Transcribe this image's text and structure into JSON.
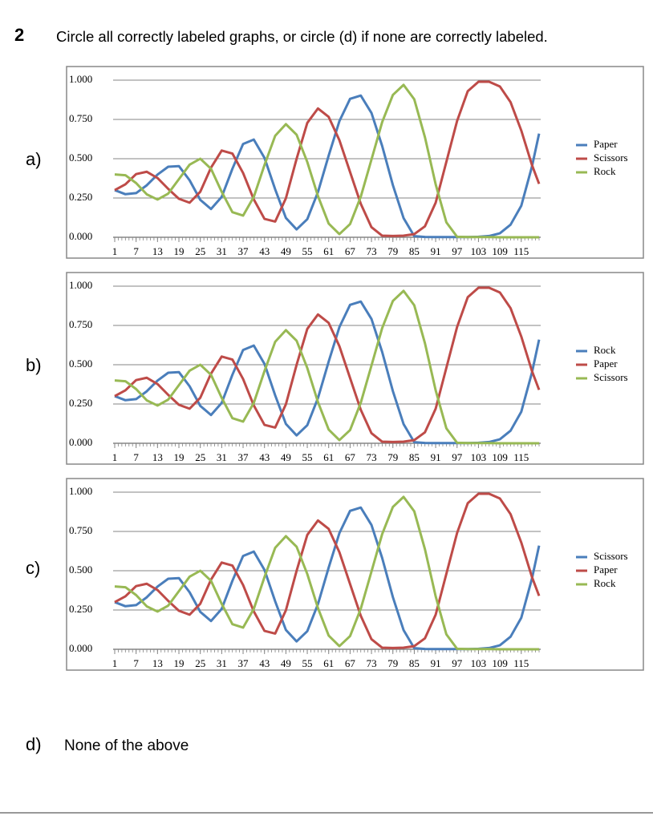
{
  "question": {
    "number": "2",
    "prompt": "Circle all correctly labeled graphs, or circle (d) if none are correctly labeled."
  },
  "option_labels": [
    "a)",
    "b)",
    "c)",
    "d)"
  ],
  "none_option": "None of the above",
  "chart_data": [
    {
      "type": "line",
      "legend": "right",
      "grid": true,
      "x": [
        1,
        4,
        7,
        10,
        13,
        16,
        19,
        22,
        25,
        28,
        31,
        34,
        37,
        40,
        43,
        46,
        49,
        52,
        55,
        58,
        61,
        64,
        67,
        70,
        73,
        76,
        79,
        82,
        85,
        88,
        91,
        94,
        97,
        100,
        103,
        106,
        109,
        112,
        115,
        118,
        120
      ],
      "xlim": [
        1,
        120
      ],
      "xticks": [
        1,
        7,
        13,
        19,
        25,
        31,
        37,
        43,
        49,
        55,
        61,
        67,
        73,
        79,
        85,
        91,
        97,
        103,
        109,
        115
      ],
      "ylim": [
        0,
        1
      ],
      "yticks": [
        {
          "value": 0,
          "label": "0.000"
        },
        {
          "value": 0.25,
          "label": "0.250"
        },
        {
          "value": 0.5,
          "label": "0.500"
        },
        {
          "value": 0.75,
          "label": "0.750"
        },
        {
          "value": 1,
          "label": "1.000"
        }
      ],
      "series": [
        {
          "name": "Paper",
          "color": "#4a7ebb",
          "values": [
            0.3,
            0.274,
            0.281,
            0.331,
            0.399,
            0.449,
            0.453,
            0.363,
            0.238,
            0.18,
            0.257,
            0.436,
            0.594,
            0.622,
            0.505,
            0.305,
            0.123,
            0.05,
            0.115,
            0.288,
            0.52,
            0.739,
            0.881,
            0.902,
            0.791,
            0.581,
            0.332,
            0.122,
            0.007,
            0.002,
            0.001,
            0.001,
            0.001,
            0.001,
            0.003,
            0.008,
            0.025,
            0.08,
            0.2,
            0.45,
            0.66
          ]
        },
        {
          "name": "Scissors",
          "color": "#be4b48",
          "values": [
            0.3,
            0.337,
            0.402,
            0.417,
            0.377,
            0.308,
            0.245,
            0.22,
            0.29,
            0.443,
            0.552,
            0.533,
            0.409,
            0.241,
            0.117,
            0.1,
            0.248,
            0.499,
            0.728,
            0.82,
            0.766,
            0.618,
            0.415,
            0.213,
            0.064,
            0.01,
            0.008,
            0.01,
            0.02,
            0.07,
            0.22,
            0.48,
            0.74,
            0.93,
            0.99,
            0.99,
            0.96,
            0.86,
            0.68,
            0.46,
            0.34
          ]
        },
        {
          "name": "Rock",
          "color": "#98b954",
          "values": [
            0.4,
            0.395,
            0.345,
            0.273,
            0.24,
            0.278,
            0.37,
            0.462,
            0.5,
            0.436,
            0.289,
            0.16,
            0.138,
            0.257,
            0.46,
            0.646,
            0.72,
            0.653,
            0.479,
            0.262,
            0.087,
            0.02,
            0.084,
            0.258,
            0.495,
            0.733,
            0.906,
            0.97,
            0.878,
            0.636,
            0.337,
            0.095,
            0.003,
            0.001,
            0.001,
            0.001,
            0,
            0,
            0,
            0,
            0
          ]
        }
      ]
    },
    {
      "type": "line",
      "legend": "right",
      "grid": true,
      "x": [
        1,
        4,
        7,
        10,
        13,
        16,
        19,
        22,
        25,
        28,
        31,
        34,
        37,
        40,
        43,
        46,
        49,
        52,
        55,
        58,
        61,
        64,
        67,
        70,
        73,
        76,
        79,
        82,
        85,
        88,
        91,
        94,
        97,
        100,
        103,
        106,
        109,
        112,
        115,
        118,
        120
      ],
      "xlim": [
        1,
        120
      ],
      "xticks": [
        1,
        7,
        13,
        19,
        25,
        31,
        37,
        43,
        49,
        55,
        61,
        67,
        73,
        79,
        85,
        91,
        97,
        103,
        109,
        115
      ],
      "ylim": [
        0,
        1
      ],
      "yticks": [
        {
          "value": 0,
          "label": "0.000"
        },
        {
          "value": 0.25,
          "label": "0.250"
        },
        {
          "value": 0.5,
          "label": "0.500"
        },
        {
          "value": 0.75,
          "label": "0.750"
        },
        {
          "value": 1,
          "label": "1.000"
        }
      ],
      "series": [
        {
          "name": "Rock",
          "color": "#4a7ebb",
          "values": [
            0.3,
            0.274,
            0.281,
            0.331,
            0.399,
            0.449,
            0.453,
            0.363,
            0.238,
            0.18,
            0.257,
            0.436,
            0.594,
            0.622,
            0.505,
            0.305,
            0.123,
            0.05,
            0.115,
            0.288,
            0.52,
            0.739,
            0.881,
            0.902,
            0.791,
            0.581,
            0.332,
            0.122,
            0.007,
            0.002,
            0.001,
            0.001,
            0.001,
            0.001,
            0.003,
            0.008,
            0.025,
            0.08,
            0.2,
            0.45,
            0.66
          ]
        },
        {
          "name": "Paper",
          "color": "#be4b48",
          "values": [
            0.3,
            0.337,
            0.402,
            0.417,
            0.377,
            0.308,
            0.245,
            0.22,
            0.29,
            0.443,
            0.552,
            0.533,
            0.409,
            0.241,
            0.117,
            0.1,
            0.248,
            0.499,
            0.728,
            0.82,
            0.766,
            0.618,
            0.415,
            0.213,
            0.064,
            0.01,
            0.008,
            0.01,
            0.02,
            0.07,
            0.22,
            0.48,
            0.74,
            0.93,
            0.99,
            0.99,
            0.96,
            0.86,
            0.68,
            0.46,
            0.34
          ]
        },
        {
          "name": "Scissors",
          "color": "#98b954",
          "values": [
            0.4,
            0.395,
            0.345,
            0.273,
            0.24,
            0.278,
            0.37,
            0.462,
            0.5,
            0.436,
            0.289,
            0.16,
            0.138,
            0.257,
            0.46,
            0.646,
            0.72,
            0.653,
            0.479,
            0.262,
            0.087,
            0.02,
            0.084,
            0.258,
            0.495,
            0.733,
            0.906,
            0.97,
            0.878,
            0.636,
            0.337,
            0.095,
            0.003,
            0.001,
            0.001,
            0.001,
            0,
            0,
            0,
            0,
            0
          ]
        }
      ]
    },
    {
      "type": "line",
      "legend": "right",
      "grid": true,
      "x": [
        1,
        4,
        7,
        10,
        13,
        16,
        19,
        22,
        25,
        28,
        31,
        34,
        37,
        40,
        43,
        46,
        49,
        52,
        55,
        58,
        61,
        64,
        67,
        70,
        73,
        76,
        79,
        82,
        85,
        88,
        91,
        94,
        97,
        100,
        103,
        106,
        109,
        112,
        115,
        118,
        120
      ],
      "xlim": [
        1,
        120
      ],
      "xticks": [
        1,
        7,
        13,
        19,
        25,
        31,
        37,
        43,
        49,
        55,
        61,
        67,
        73,
        79,
        85,
        91,
        97,
        103,
        109,
        115
      ],
      "ylim": [
        0,
        1
      ],
      "yticks": [
        {
          "value": 0,
          "label": "0.000"
        },
        {
          "value": 0.25,
          "label": "0.250"
        },
        {
          "value": 0.5,
          "label": "0.500"
        },
        {
          "value": 0.75,
          "label": "0.750"
        },
        {
          "value": 1,
          "label": "1.000"
        }
      ],
      "series": [
        {
          "name": "Scissors",
          "color": "#4a7ebb",
          "values": [
            0.3,
            0.274,
            0.281,
            0.331,
            0.399,
            0.449,
            0.453,
            0.363,
            0.238,
            0.18,
            0.257,
            0.436,
            0.594,
            0.622,
            0.505,
            0.305,
            0.123,
            0.05,
            0.115,
            0.288,
            0.52,
            0.739,
            0.881,
            0.902,
            0.791,
            0.581,
            0.332,
            0.122,
            0.007,
            0.002,
            0.001,
            0.001,
            0.001,
            0.001,
            0.003,
            0.008,
            0.025,
            0.08,
            0.2,
            0.45,
            0.66
          ]
        },
        {
          "name": "Paper",
          "color": "#be4b48",
          "values": [
            0.3,
            0.337,
            0.402,
            0.417,
            0.377,
            0.308,
            0.245,
            0.22,
            0.29,
            0.443,
            0.552,
            0.533,
            0.409,
            0.241,
            0.117,
            0.1,
            0.248,
            0.499,
            0.728,
            0.82,
            0.766,
            0.618,
            0.415,
            0.213,
            0.064,
            0.01,
            0.008,
            0.01,
            0.02,
            0.07,
            0.22,
            0.48,
            0.74,
            0.93,
            0.99,
            0.99,
            0.96,
            0.86,
            0.68,
            0.46,
            0.34
          ]
        },
        {
          "name": "Rock",
          "color": "#98b954",
          "values": [
            0.4,
            0.395,
            0.345,
            0.273,
            0.24,
            0.278,
            0.37,
            0.462,
            0.5,
            0.436,
            0.289,
            0.16,
            0.138,
            0.257,
            0.46,
            0.646,
            0.72,
            0.653,
            0.479,
            0.262,
            0.087,
            0.02,
            0.084,
            0.258,
            0.495,
            0.733,
            0.906,
            0.97,
            0.878,
            0.636,
            0.337,
            0.095,
            0.003,
            0.001,
            0.001,
            0.001,
            0,
            0,
            0,
            0,
            0
          ]
        }
      ]
    }
  ]
}
